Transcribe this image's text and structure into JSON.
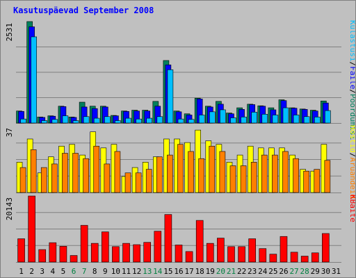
{
  "window": {
    "title": "Kasutuspäevad September 2008"
  },
  "colors": {
    "background": "#c0c0c0",
    "title": "#0000ff",
    "grid": "#808080",
    "weekend_day": "#008040",
    "weekday": "#000000",
    "pages": "#00805c",
    "requests": "#0000ff",
    "files": "#00bfff",
    "visits": "#ffff00",
    "hosts": "#ff8000",
    "kbytes": "#ff0000"
  },
  "chart_data": [
    {
      "type": "bar",
      "panel": "top",
      "title": "Kasutuspäevad September 2008",
      "x": [
        1,
        2,
        3,
        4,
        5,
        6,
        7,
        8,
        9,
        10,
        11,
        12,
        13,
        14,
        15,
        16,
        17,
        18,
        19,
        20,
        21,
        22,
        23,
        24,
        25,
        26,
        27,
        28,
        29,
        30,
        31
      ],
      "y_top_label": "2531",
      "ylim": [
        0,
        2531
      ],
      "legend": [
        {
          "name": "Pöördumisi",
          "color": "#00805c"
        },
        {
          "name": "Faile",
          "color": "#0000ff"
        },
        {
          "name": "Külastusi",
          "color": "#00bfff"
        }
      ],
      "series": [
        {
          "name": "Pöördumisi",
          "values": [
            300,
            2531,
            150,
            180,
            420,
            150,
            520,
            420,
            420,
            190,
            300,
            320,
            320,
            540,
            1560,
            300,
            230,
            620,
            420,
            540,
            250,
            380,
            470,
            430,
            380,
            580,
            380,
            350,
            320,
            550,
            0
          ]
        },
        {
          "name": "Faile",
          "values": [
            290,
            2400,
            140,
            170,
            410,
            140,
            400,
            360,
            400,
            180,
            290,
            300,
            300,
            420,
            1450,
            280,
            200,
            600,
            400,
            470,
            230,
            340,
            460,
            420,
            330,
            560,
            370,
            340,
            300,
            500,
            0
          ]
        },
        {
          "name": "Külastusi",
          "values": [
            100,
            2150,
            60,
            90,
            180,
            60,
            160,
            120,
            160,
            60,
            120,
            100,
            120,
            160,
            1330,
            100,
            90,
            200,
            280,
            330,
            130,
            150,
            270,
            220,
            200,
            380,
            200,
            160,
            150,
            310,
            0
          ]
        }
      ]
    },
    {
      "type": "bar",
      "panel": "middle",
      "x": [
        1,
        2,
        3,
        4,
        5,
        6,
        7,
        8,
        9,
        10,
        11,
        12,
        13,
        14,
        15,
        16,
        17,
        18,
        19,
        20,
        21,
        22,
        23,
        24,
        25,
        26,
        27,
        28,
        29,
        30,
        31
      ],
      "y_top_label": "37",
      "ylim": [
        0,
        37
      ],
      "legend": [
        {
          "name": "Aruandeid",
          "color": "#ff8000"
        },
        {
          "name": "Hostid",
          "color": "#ffff00"
        }
      ],
      "series": [
        {
          "name": "Hostid",
          "values": [
            17,
            30,
            11,
            20,
            26,
            27,
            21,
            34,
            25,
            27,
            9,
            14,
            17,
            20,
            30,
            30,
            28,
            35,
            29,
            27,
            17,
            21,
            26,
            25,
            25,
            25,
            21,
            13,
            12,
            27,
            0
          ]
        },
        {
          "name": "Aruandeid",
          "values": [
            14,
            24,
            14,
            16,
            22,
            22,
            19,
            26,
            16,
            23,
            11,
            11,
            13,
            20,
            21,
            27,
            23,
            19,
            26,
            23,
            15,
            15,
            17,
            21,
            21,
            23,
            19,
            12,
            13,
            18,
            0
          ]
        }
      ]
    },
    {
      "type": "bar",
      "panel": "bottom",
      "x": [
        1,
        2,
        3,
        4,
        5,
        6,
        7,
        8,
        9,
        10,
        11,
        12,
        13,
        14,
        15,
        16,
        17,
        18,
        19,
        20,
        21,
        22,
        23,
        24,
        25,
        26,
        27,
        28,
        29,
        30,
        31
      ],
      "y_top_label": "20143",
      "ylim": [
        0,
        20143
      ],
      "legend": [
        {
          "name": "KBaite",
          "color": "#ff0000"
        }
      ],
      "series": [
        {
          "name": "KBaite",
          "values": [
            7100,
            20143,
            3800,
            5900,
            4800,
            2000,
            11200,
            5700,
            9200,
            4700,
            5700,
            5300,
            6000,
            9400,
            14500,
            5200,
            3200,
            12700,
            5700,
            7300,
            4700,
            4700,
            7100,
            4100,
            2400,
            7800,
            3000,
            1800,
            2800,
            8700,
            0
          ]
        }
      ]
    }
  ]
}
